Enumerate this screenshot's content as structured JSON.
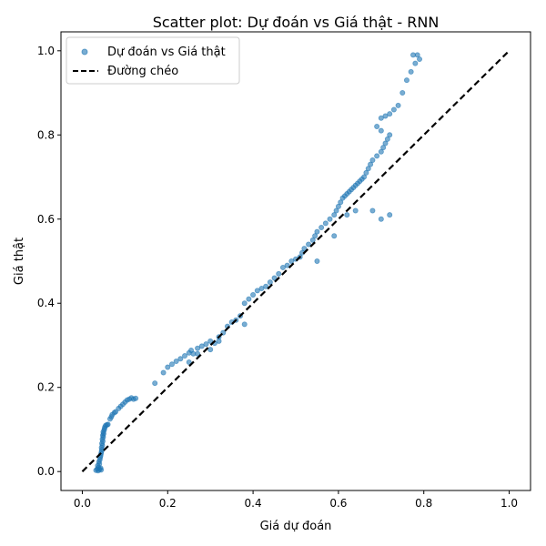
{
  "chart_data": {
    "type": "scatter",
    "title": "Scatter plot: Dự đoán vs Giá thật - RNN",
    "xlabel": "Giá dự đoán",
    "ylabel": "Giá thật",
    "xlim": [
      -0.05,
      1.05
    ],
    "ylim": [
      -0.045,
      1.045
    ],
    "xticks": [
      0.0,
      0.2,
      0.4,
      0.6,
      0.8,
      1.0
    ],
    "yticks": [
      0.0,
      0.2,
      0.4,
      0.6,
      0.8,
      1.0
    ],
    "xtick_labels": [
      "0.0",
      "0.2",
      "0.4",
      "0.6",
      "0.8",
      "1.0"
    ],
    "ytick_labels": [
      "0.0",
      "0.2",
      "0.4",
      "0.6",
      "0.8",
      "1.0"
    ],
    "grid": false,
    "legend_position": "top-left",
    "series": [
      {
        "name": "Dự đoán vs Giá thật",
        "kind": "scatter",
        "color": "#1f77b4",
        "alpha": 0.6,
        "points": [
          [
            0.032,
            0.003
          ],
          [
            0.035,
            0.006
          ],
          [
            0.038,
            0.01
          ],
          [
            0.036,
            0.014
          ],
          [
            0.04,
            0.018
          ],
          [
            0.039,
            0.023
          ],
          [
            0.041,
            0.028
          ],
          [
            0.042,
            0.033
          ],
          [
            0.043,
            0.038
          ],
          [
            0.044,
            0.043
          ],
          [
            0.045,
            0.048
          ],
          [
            0.046,
            0.052
          ],
          [
            0.045,
            0.057
          ],
          [
            0.047,
            0.062
          ],
          [
            0.046,
            0.067
          ],
          [
            0.048,
            0.072
          ],
          [
            0.047,
            0.077
          ],
          [
            0.049,
            0.082
          ],
          [
            0.048,
            0.086
          ],
          [
            0.05,
            0.09
          ],
          [
            0.049,
            0.094
          ],
          [
            0.051,
            0.098
          ],
          [
            0.052,
            0.102
          ],
          [
            0.053,
            0.106
          ],
          [
            0.055,
            0.11
          ],
          [
            0.058,
            0.111
          ],
          [
            0.04,
            0.005
          ],
          [
            0.043,
            0.008
          ],
          [
            0.037,
            0.002
          ],
          [
            0.044,
            0.004
          ],
          [
            0.06,
            0.112
          ],
          [
            0.065,
            0.125
          ],
          [
            0.068,
            0.13
          ],
          [
            0.07,
            0.135
          ],
          [
            0.075,
            0.14
          ],
          [
            0.078,
            0.142
          ],
          [
            0.085,
            0.15
          ],
          [
            0.09,
            0.155
          ],
          [
            0.095,
            0.16
          ],
          [
            0.1,
            0.165
          ],
          [
            0.105,
            0.17
          ],
          [
            0.11,
            0.172
          ],
          [
            0.115,
            0.175
          ],
          [
            0.12,
            0.172
          ],
          [
            0.125,
            0.174
          ],
          [
            0.17,
            0.21
          ],
          [
            0.19,
            0.235
          ],
          [
            0.2,
            0.248
          ],
          [
            0.21,
            0.255
          ],
          [
            0.22,
            0.262
          ],
          [
            0.23,
            0.268
          ],
          [
            0.24,
            0.275
          ],
          [
            0.25,
            0.282
          ],
          [
            0.255,
            0.288
          ],
          [
            0.26,
            0.28
          ],
          [
            0.27,
            0.293
          ],
          [
            0.28,
            0.298
          ],
          [
            0.29,
            0.303
          ],
          [
            0.3,
            0.31
          ],
          [
            0.31,
            0.305
          ],
          [
            0.32,
            0.32
          ],
          [
            0.33,
            0.33
          ],
          [
            0.34,
            0.345
          ],
          [
            0.35,
            0.355
          ],
          [
            0.36,
            0.36
          ],
          [
            0.37,
            0.37
          ],
          [
            0.38,
            0.4
          ],
          [
            0.39,
            0.41
          ],
          [
            0.4,
            0.42
          ],
          [
            0.41,
            0.43
          ],
          [
            0.42,
            0.435
          ],
          [
            0.43,
            0.44
          ],
          [
            0.44,
            0.45
          ],
          [
            0.45,
            0.46
          ],
          [
            0.46,
            0.47
          ],
          [
            0.47,
            0.485
          ],
          [
            0.48,
            0.49
          ],
          [
            0.49,
            0.5
          ],
          [
            0.5,
            0.505
          ],
          [
            0.51,
            0.51
          ],
          [
            0.515,
            0.52
          ],
          [
            0.52,
            0.53
          ],
          [
            0.53,
            0.54
          ],
          [
            0.54,
            0.55
          ],
          [
            0.545,
            0.56
          ],
          [
            0.55,
            0.57
          ],
          [
            0.56,
            0.58
          ],
          [
            0.57,
            0.59
          ],
          [
            0.58,
            0.6
          ],
          [
            0.59,
            0.61
          ],
          [
            0.595,
            0.62
          ],
          [
            0.6,
            0.63
          ],
          [
            0.605,
            0.64
          ],
          [
            0.61,
            0.65
          ],
          [
            0.615,
            0.655
          ],
          [
            0.62,
            0.66
          ],
          [
            0.625,
            0.665
          ],
          [
            0.63,
            0.67
          ],
          [
            0.635,
            0.675
          ],
          [
            0.64,
            0.68
          ],
          [
            0.645,
            0.685
          ],
          [
            0.65,
            0.69
          ],
          [
            0.655,
            0.695
          ],
          [
            0.66,
            0.7
          ],
          [
            0.665,
            0.71
          ],
          [
            0.67,
            0.72
          ],
          [
            0.675,
            0.73
          ],
          [
            0.68,
            0.74
          ],
          [
            0.69,
            0.75
          ],
          [
            0.7,
            0.76
          ],
          [
            0.705,
            0.77
          ],
          [
            0.71,
            0.78
          ],
          [
            0.715,
            0.79
          ],
          [
            0.72,
            0.8
          ],
          [
            0.7,
            0.81
          ],
          [
            0.69,
            0.82
          ],
          [
            0.7,
            0.84
          ],
          [
            0.71,
            0.845
          ],
          [
            0.72,
            0.85
          ],
          [
            0.73,
            0.86
          ],
          [
            0.74,
            0.87
          ],
          [
            0.75,
            0.9
          ],
          [
            0.76,
            0.93
          ],
          [
            0.77,
            0.95
          ],
          [
            0.78,
            0.97
          ],
          [
            0.775,
            0.99
          ],
          [
            0.785,
            0.99
          ],
          [
            0.79,
            0.98
          ],
          [
            0.7,
            0.6
          ],
          [
            0.72,
            0.61
          ],
          [
            0.68,
            0.62
          ],
          [
            0.55,
            0.5
          ],
          [
            0.59,
            0.56
          ],
          [
            0.62,
            0.61
          ],
          [
            0.64,
            0.62
          ],
          [
            0.38,
            0.35
          ],
          [
            0.3,
            0.29
          ],
          [
            0.32,
            0.31
          ],
          [
            0.27,
            0.28
          ],
          [
            0.25,
            0.26
          ]
        ]
      },
      {
        "name": "Đường chéo",
        "kind": "line",
        "color": "#000000",
        "dash": true,
        "points": [
          [
            0.0,
            0.0
          ],
          [
            1.0,
            1.0
          ]
        ]
      }
    ]
  }
}
